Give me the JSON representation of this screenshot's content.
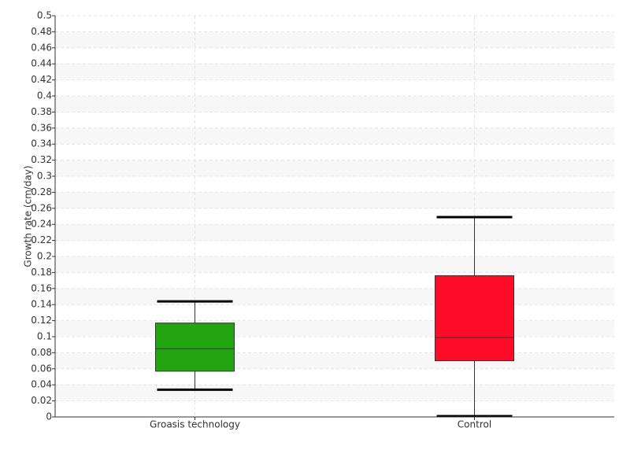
{
  "chart_data": {
    "type": "box",
    "y_label": "Growth rate (cm/day)",
    "categories": [
      "Groasis technology",
      "Control"
    ],
    "boxes": [
      {
        "min": 0.034,
        "q1": 0.057,
        "median": 0.085,
        "q3": 0.117,
        "max": 0.144,
        "color": "#22a511"
      },
      {
        "min": 0.001,
        "q1": 0.07,
        "median": 0.099,
        "q3": 0.176,
        "max": 0.249,
        "color": "#ff0d28"
      }
    ],
    "ylim": [
      0,
      0.5
    ],
    "yticks": [
      0,
      0.02,
      0.04,
      0.06,
      0.08,
      0.1,
      0.12,
      0.14,
      0.16,
      0.18,
      0.2,
      0.22,
      0.24,
      0.26,
      0.28,
      0.3,
      0.32,
      0.34,
      0.36,
      0.38,
      0.4,
      0.42,
      0.44,
      0.46,
      0.48,
      0.5
    ],
    "grid": true
  }
}
